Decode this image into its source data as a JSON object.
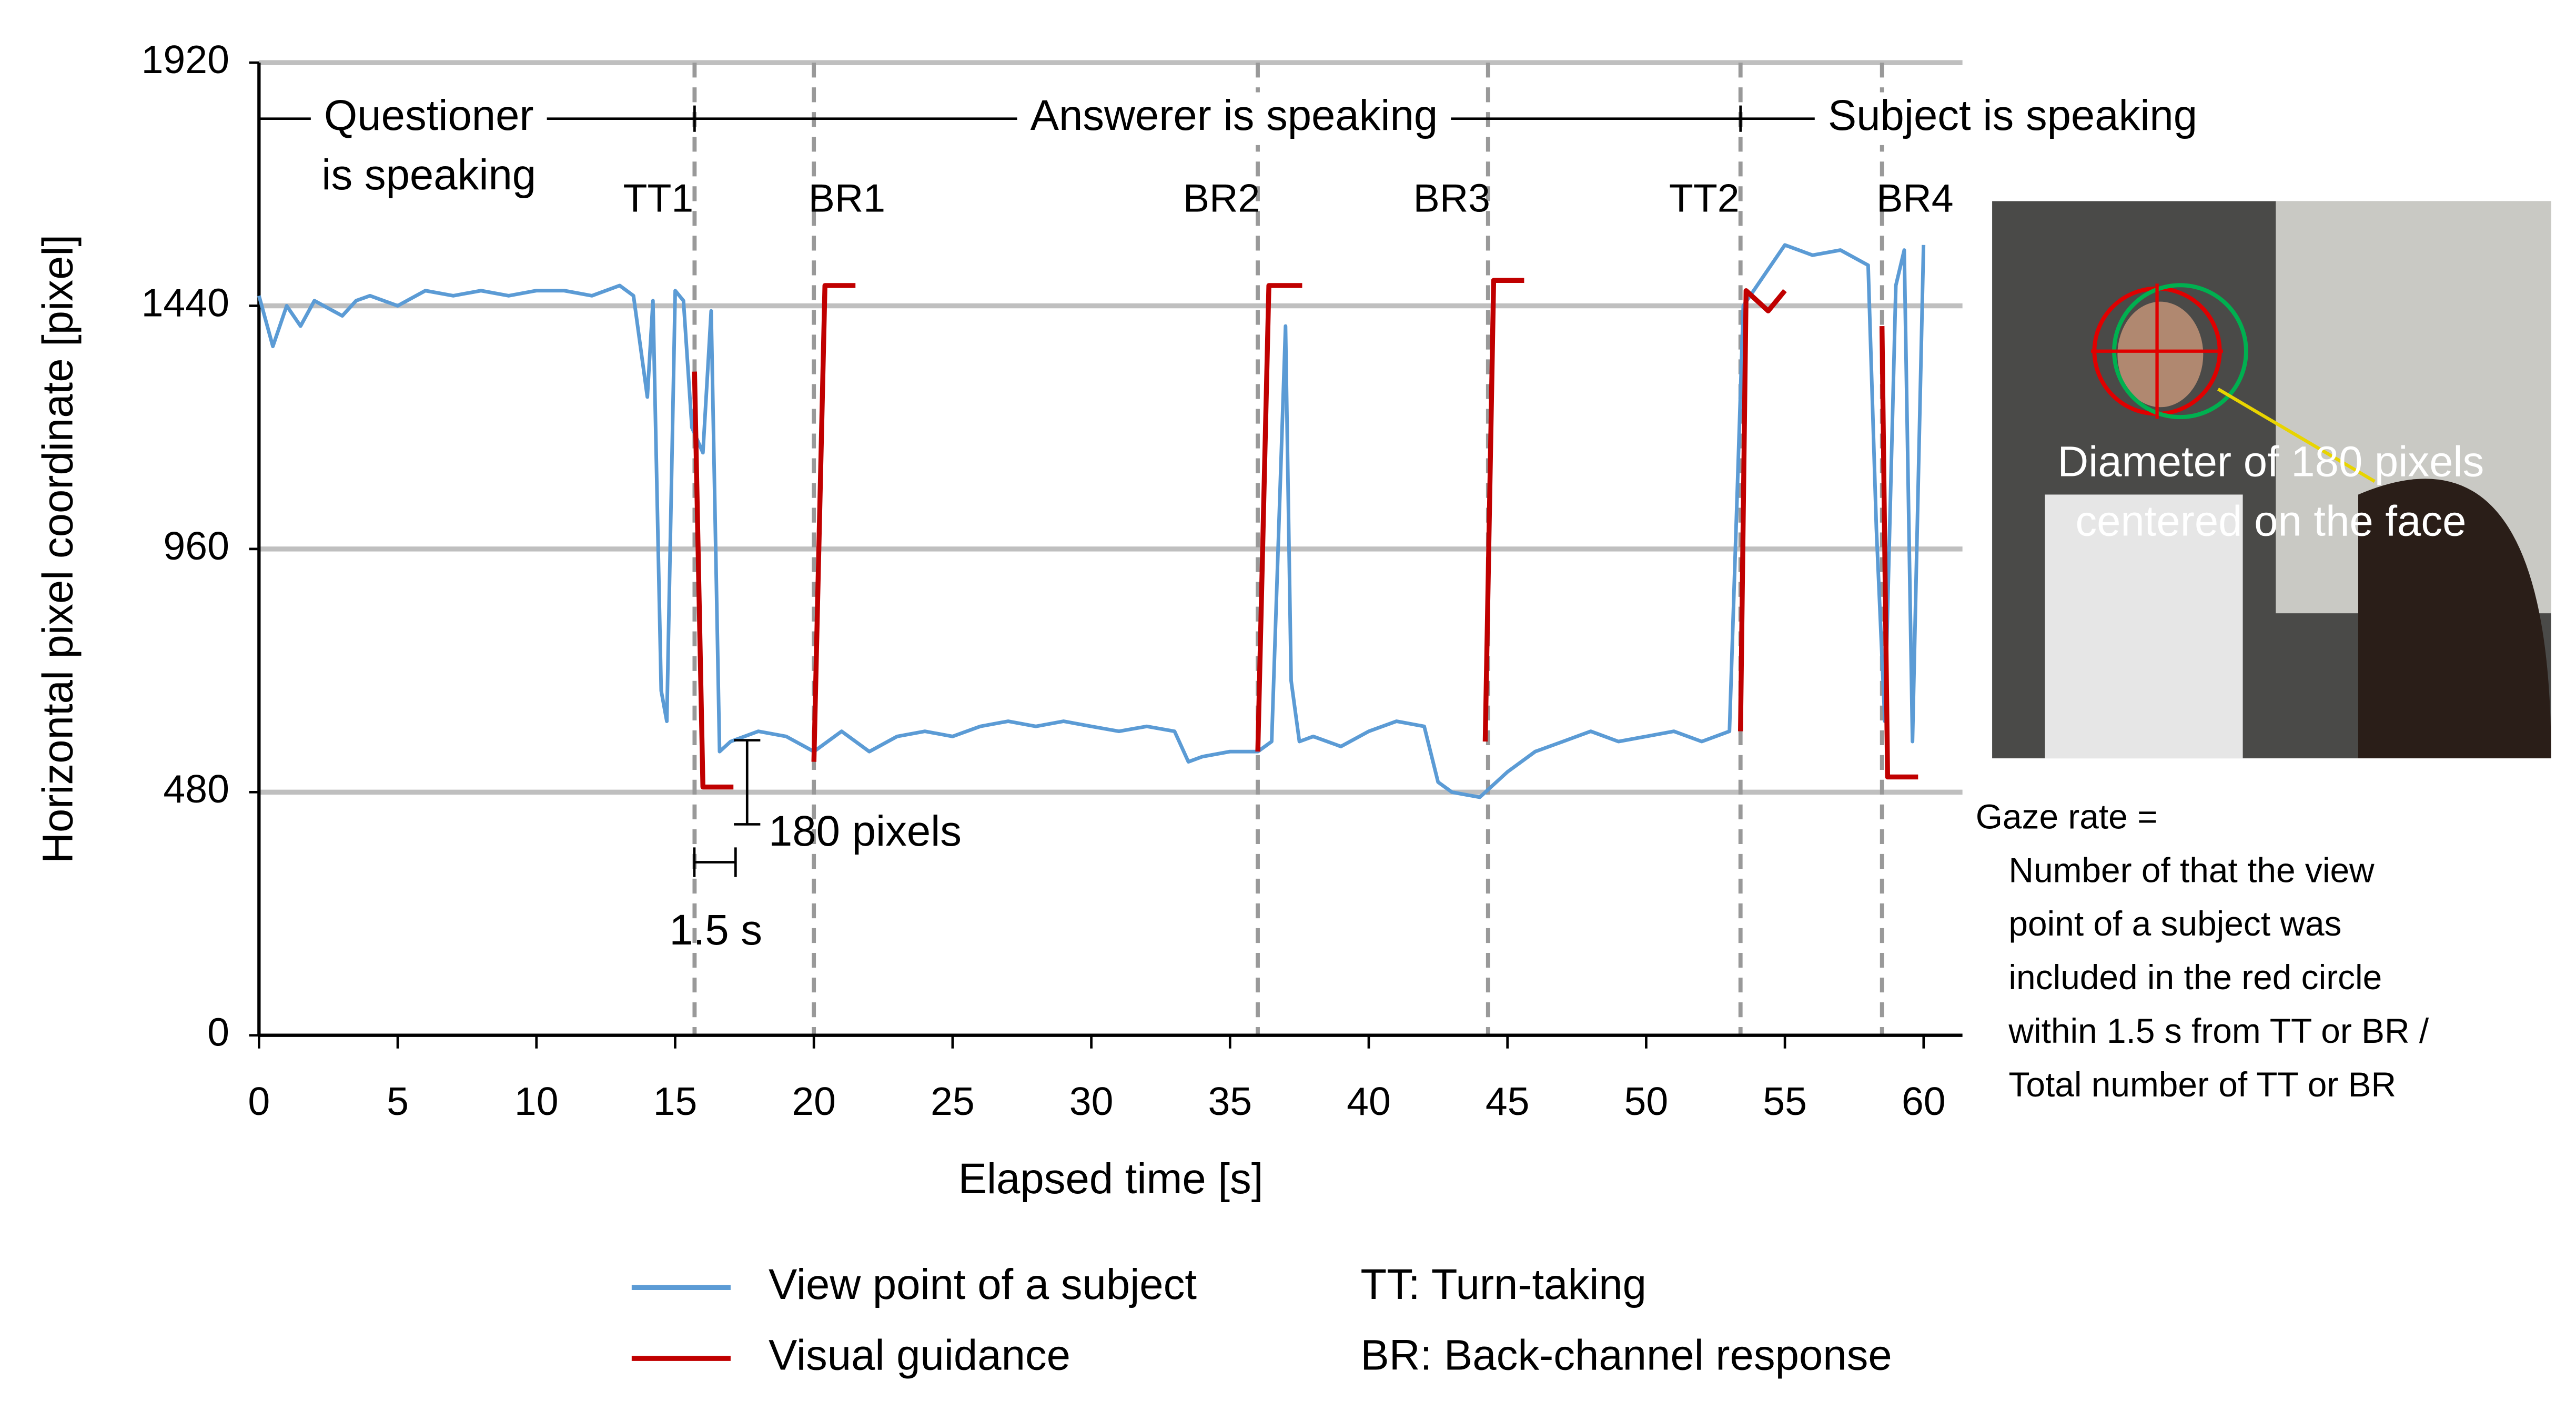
{
  "chart_data": {
    "type": "line",
    "x_label": "Elapsed time [s]",
    "y_label": "Horizontal pixel coordinate [pixel]",
    "xlim": [
      0,
      61.4
    ],
    "ylim": [
      0,
      1920
    ],
    "xticks": [
      0,
      5,
      10,
      15,
      20,
      25,
      30,
      35,
      40,
      45,
      50,
      55,
      60
    ],
    "yticks": [
      0,
      480,
      960,
      1440,
      1920
    ],
    "grid": true,
    "series": [
      {
        "name": "View point of a subject",
        "color": "#5b9bd5",
        "x": [
          0,
          0.5,
          1,
          1.5,
          2,
          3,
          3.5,
          4,
          5,
          6,
          7,
          8,
          9,
          10,
          11,
          12,
          13,
          13.5,
          14,
          14.2,
          14.5,
          14.7,
          15,
          15.3,
          15.6,
          16,
          16.3,
          16.6,
          17,
          17.5,
          18,
          19,
          20,
          21,
          22,
          23,
          24,
          25,
          26,
          27,
          28,
          29,
          30,
          31,
          32,
          33,
          33.5,
          34,
          35,
          36,
          36.5,
          37,
          37.2,
          37.5,
          38,
          39,
          40,
          41,
          42,
          42.5,
          43,
          44,
          45,
          46,
          47,
          48,
          49,
          50,
          51,
          52,
          53,
          53.5,
          54,
          55,
          56,
          57,
          58,
          58.3,
          58.6,
          59,
          59.3,
          59.6,
          60
        ],
        "values": [
          1460,
          1360,
          1440,
          1400,
          1450,
          1420,
          1450,
          1460,
          1440,
          1470,
          1460,
          1470,
          1460,
          1470,
          1470,
          1460,
          1480,
          1460,
          1260,
          1450,
          680,
          620,
          1470,
          1450,
          1200,
          1150,
          1430,
          560,
          580,
          590,
          600,
          590,
          560,
          600,
          560,
          590,
          600,
          590,
          610,
          620,
          610,
          620,
          610,
          600,
          610,
          600,
          540,
          550,
          560,
          560,
          580,
          1400,
          700,
          580,
          590,
          570,
          600,
          620,
          610,
          500,
          480,
          470,
          520,
          560,
          580,
          600,
          580,
          590,
          600,
          580,
          600,
          1440,
          1480,
          1560,
          1540,
          1550,
          1520,
          1000,
          620,
          1480,
          1550,
          580,
          1560
        ]
      },
      {
        "name": "Visual guidance",
        "color": "#c00000",
        "x": [
          15.7,
          16,
          17.1,
          null,
          20,
          20.4,
          21.5,
          null,
          36,
          36.4,
          37.6,
          null,
          44.2,
          44.5,
          45.6,
          null,
          53.4,
          53.6,
          54.4,
          55,
          null,
          58.5,
          58.7,
          59.8
        ],
        "values": [
          1310,
          490,
          490,
          null,
          540,
          1480,
          1480,
          null,
          560,
          1480,
          1480,
          null,
          580,
          1490,
          1490,
          null,
          600,
          1470,
          1430,
          1470,
          null,
          1400,
          510,
          510
        ]
      }
    ],
    "events": [
      {
        "label": "TT1",
        "x": 15.7
      },
      {
        "label": "BR1",
        "x": 20
      },
      {
        "label": "BR2",
        "x": 36
      },
      {
        "label": "BR3",
        "x": 44.3
      },
      {
        "label": "TT2",
        "x": 53.4
      },
      {
        "label": "BR4",
        "x": 58.5
      }
    ],
    "phases": [
      {
        "label": [
          "Questioner",
          "is speaking"
        ]
      },
      {
        "label": [
          "Answerer is speaking"
        ]
      },
      {
        "label": [
          "Subject is speaking"
        ]
      }
    ],
    "annotations": {
      "pixels": "180 pixels",
      "seconds": "1.5 s"
    },
    "legend_notes": [
      "TT: Turn-taking",
      "BR: Back-channel response"
    ],
    "photo_caption": [
      "Diameter of 180 pixels",
      "centered on the face"
    ],
    "gaze_rate_note": [
      "Gaze rate =",
      "Number of that the view",
      "point of a subject was",
      "included in the red circle",
      "within 1.5 s from TT or BR /",
      "Total number of TT or BR"
    ]
  }
}
